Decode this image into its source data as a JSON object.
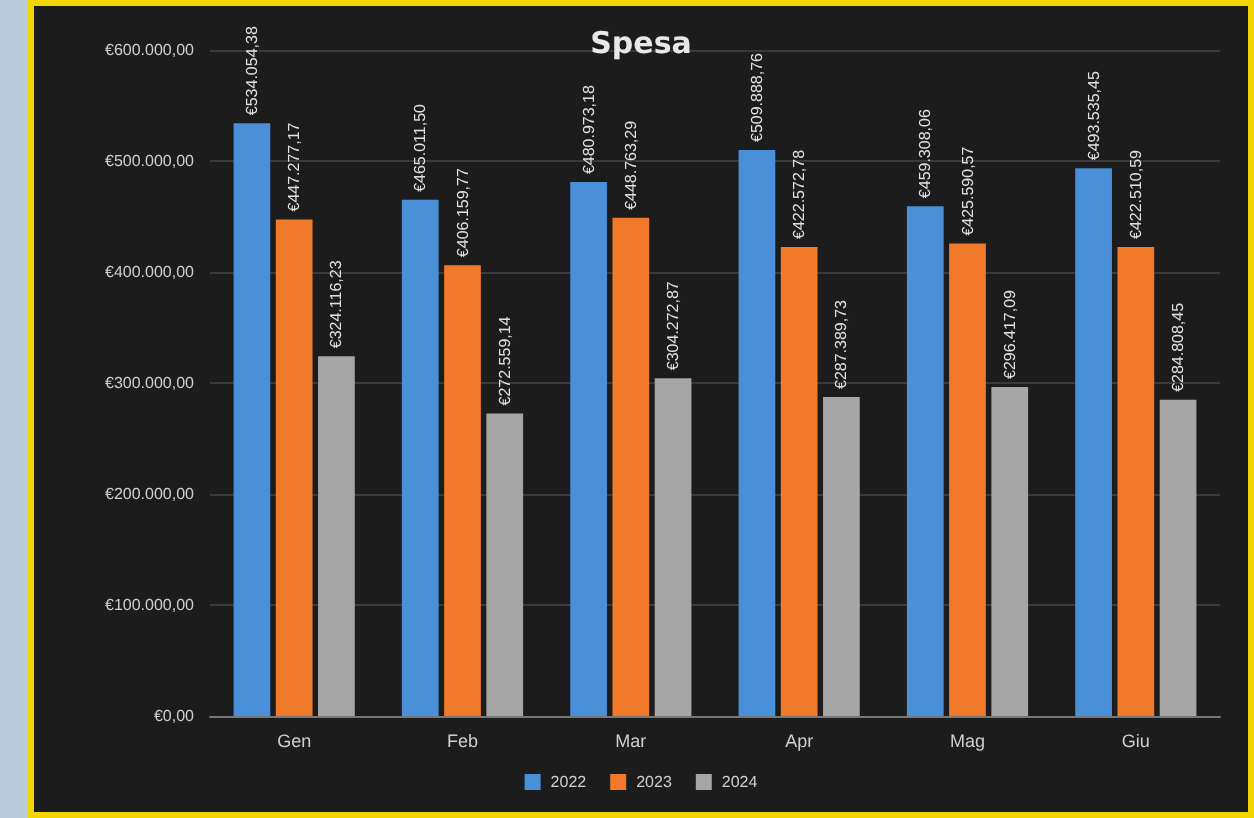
{
  "chart_data": {
    "type": "bar",
    "title": "Spesa",
    "categories": [
      "Gen",
      "Feb",
      "Mar",
      "Apr",
      "Mag",
      "Giu"
    ],
    "series": [
      {
        "name": "2022",
        "color": "#4a90d9",
        "values": [
          534054.38,
          465011.5,
          480973.18,
          509888.76,
          459308.06,
          493535.45
        ],
        "value_labels": [
          "€534.054,38",
          "€465.011,50",
          "€480.973,18",
          "€509.888,76",
          "€459.308,06",
          "€493.535,45"
        ]
      },
      {
        "name": "2023",
        "color": "#f07a2a",
        "values": [
          447277.17,
          406159.77,
          448763.29,
          422572.78,
          425590.57,
          422510.59
        ],
        "value_labels": [
          "€447.277,17",
          "€406.159,77",
          "€448.763,29",
          "€422.572,78",
          "€425.590,57",
          "€422.510,59"
        ]
      },
      {
        "name": "2024",
        "color": "#a6a6a6",
        "values": [
          324116.23,
          272559.14,
          304272.87,
          287389.73,
          296417.09,
          284808.45
        ],
        "value_labels": [
          "€324.116,23",
          "€272.559,14",
          "€304.272,87",
          "€287.389,73",
          "€296.417,09",
          "€284.808,45"
        ]
      }
    ],
    "ylim": [
      0,
      600000
    ],
    "yticks": [
      {
        "value": 0,
        "label": "€0,00"
      },
      {
        "value": 100000,
        "label": "€100.000,00"
      },
      {
        "value": 200000,
        "label": "€200.000,00"
      },
      {
        "value": 300000,
        "label": "€300.000,00"
      },
      {
        "value": 400000,
        "label": "€400.000,00"
      },
      {
        "value": 500000,
        "label": "€500.000,00"
      },
      {
        "value": 600000,
        "label": "€600.000,00"
      }
    ],
    "grid": "y",
    "legend": "bottom"
  }
}
